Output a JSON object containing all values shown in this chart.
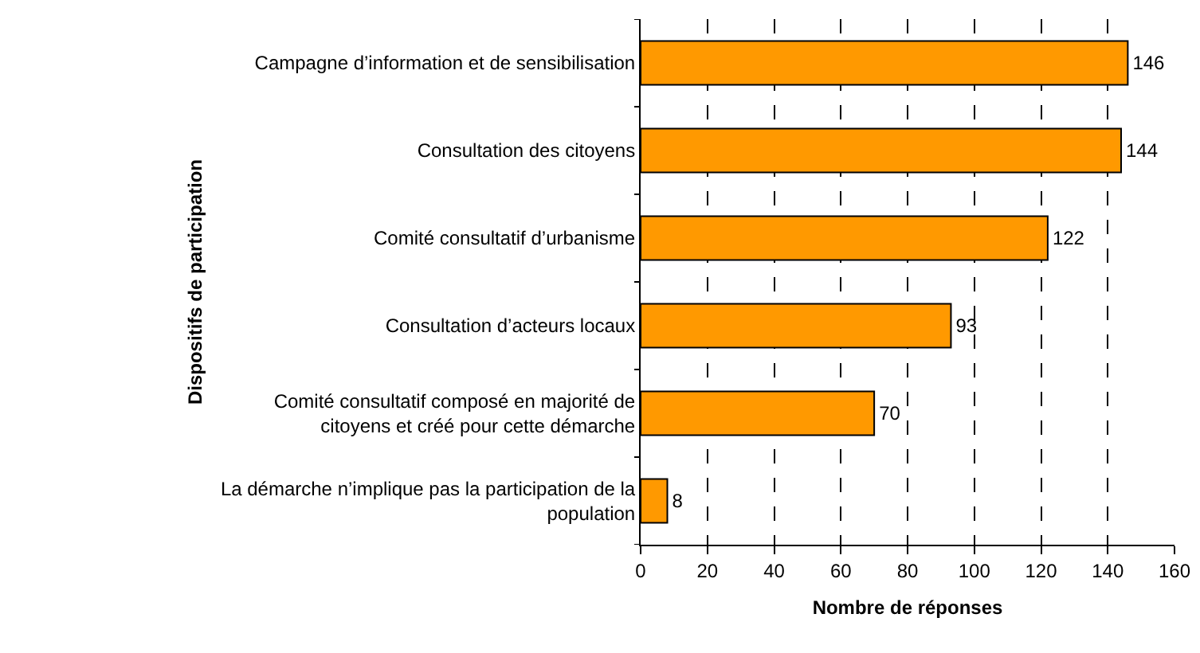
{
  "chart_data": {
    "type": "bar",
    "orientation": "horizontal",
    "xlabel": "Nombre de réponses",
    "ylabel": "Dispositifs de participation",
    "categories": [
      "Campagne d’information et de sensibilisation",
      "Consultation des citoyens",
      "Comité consultatif d’urbanisme",
      "Consultation d’acteurs locaux",
      "Comité consultatif composé en majorité de\ncitoyens et créé pour cette démarche",
      "La démarche n’implique pas la participation de la\npopulation"
    ],
    "values": [
      146,
      144,
      122,
      93,
      70,
      8
    ],
    "color": "#ff9900",
    "data_labels": true,
    "grid": "x",
    "xlim": [
      0,
      160
    ],
    "xticks": [
      0,
      20,
      40,
      60,
      80,
      100,
      120,
      140,
      160
    ],
    "legend": false
  }
}
